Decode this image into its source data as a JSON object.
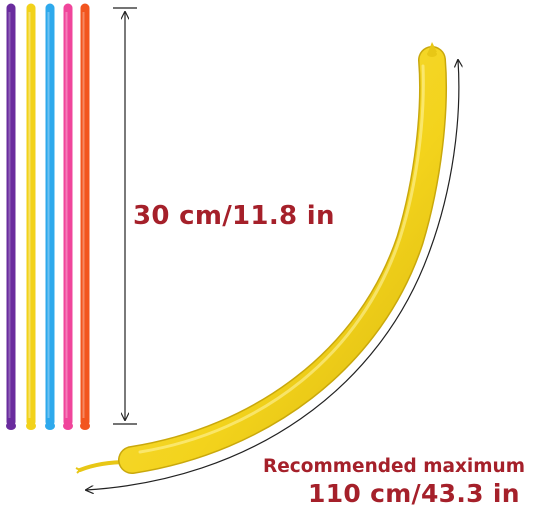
{
  "measurements": {
    "uninflated_length": "30 cm/11.8 in",
    "max_caption": "Recommended maximum",
    "max_length": "110 cm/43.3 in"
  },
  "balloon_colors": {
    "purple": "#6a2c9e",
    "yellow": "#f2d21b",
    "blue": "#2ea9ec",
    "pink": "#f0459b",
    "orange": "#f2551f",
    "inflated": "#f3d31c"
  },
  "label_color": "#a5202a",
  "measure_line_color": "#222222"
}
